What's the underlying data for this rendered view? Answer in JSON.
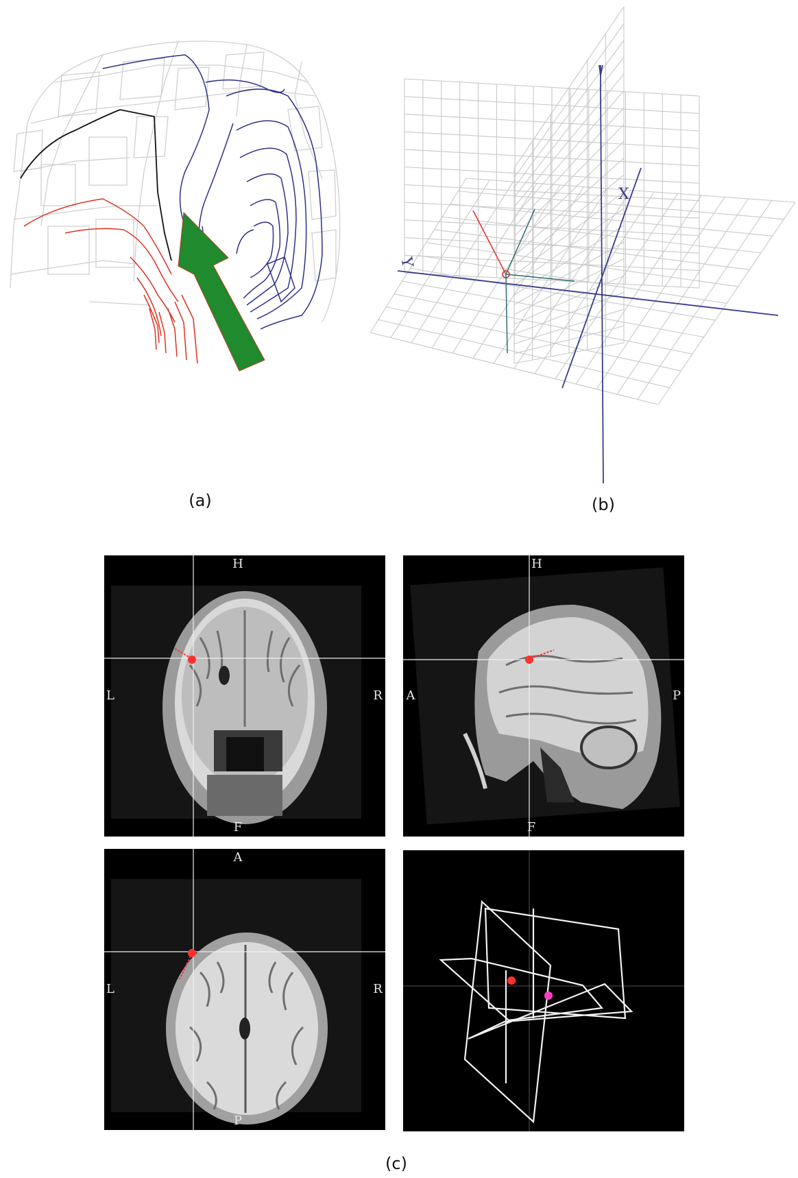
{
  "figure": {
    "captions": {
      "a": "(a)",
      "b": "(b)",
      "c": "(c)"
    }
  },
  "panel_a": {
    "arrow_color": "#1f8a2e",
    "contour_colors": {
      "negative": "#2e2e8a",
      "positive": "#e0301e",
      "zero": "#111111"
    }
  },
  "panel_b": {
    "axis_labels": {
      "x": "X",
      "y": "Y"
    },
    "colors": {
      "grid": "#c8c8c8",
      "axis": "#3a3a8c",
      "dipole": "#e03020",
      "local_axes": "#2c6e6e"
    }
  },
  "panel_c": {
    "coronal": {
      "top": "H",
      "bottom": "F",
      "left": "L",
      "right": "R"
    },
    "sagittal": {
      "top": "H",
      "bottom": "F",
      "left": "A",
      "right": "P"
    },
    "axial": {
      "top": "A",
      "bottom": "P",
      "left": "L",
      "right": "R"
    },
    "marker_colors": {
      "source": "#ff3030",
      "secondary": "#ff40c0"
    }
  }
}
